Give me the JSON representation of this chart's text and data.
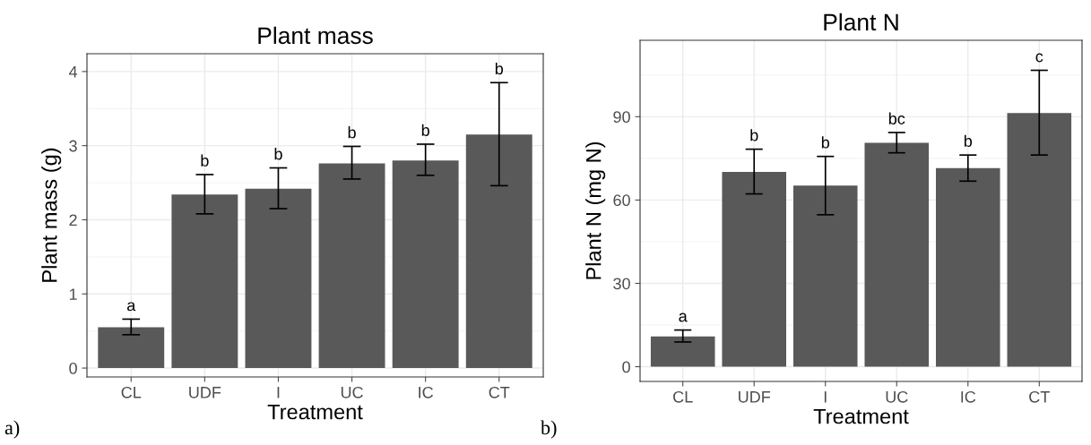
{
  "chart_data": [
    {
      "type": "bar",
      "title": "Plant mass",
      "xlabel": "Treatment",
      "ylabel": "Plant mass (g)",
      "categories": [
        "CL",
        "UDF",
        "I",
        "UC",
        "IC",
        "CT"
      ],
      "values": [
        0.55,
        2.34,
        2.42,
        2.76,
        2.8,
        3.15
      ],
      "color": "#595959",
      "errors": [
        [
          0.45,
          0.66
        ],
        [
          2.08,
          2.61
        ],
        [
          2.15,
          2.7
        ],
        [
          2.55,
          2.99
        ],
        [
          2.6,
          3.02
        ],
        [
          2.46,
          3.85
        ]
      ],
      "ylim": [
        -0.12,
        4.24
      ],
      "yticks": [
        0,
        1,
        2,
        3,
        4
      ],
      "grid": true,
      "annotations": [
        "a",
        "b",
        "b",
        "b",
        "b",
        "b",
        "a)"
      ]
    },
    {
      "type": "bar",
      "title": "Plant N",
      "xlabel": "Treatment",
      "ylabel": "Plant N (mg N)",
      "categories": [
        "CL",
        "UDF",
        "I",
        "UC",
        "IC",
        "CT"
      ],
      "values": [
        10.9,
        70.1,
        65.2,
        80.6,
        71.5,
        91.3
      ],
      "color": "#595959",
      "errors": [
        [
          8.9,
          13.2
        ],
        [
          62.2,
          78.3
        ],
        [
          54.7,
          75.7
        ],
        [
          77.0,
          84.3
        ],
        [
          66.8,
          76.2
        ],
        [
          76.2,
          106.7
        ]
      ],
      "ylim": [
        -5.3,
        117.5
      ],
      "yticks": [
        0,
        30,
        60,
        90
      ],
      "grid": true,
      "annotations": [
        "a",
        "b",
        "b",
        "bc",
        "b",
        "c",
        "b)"
      ]
    }
  ]
}
